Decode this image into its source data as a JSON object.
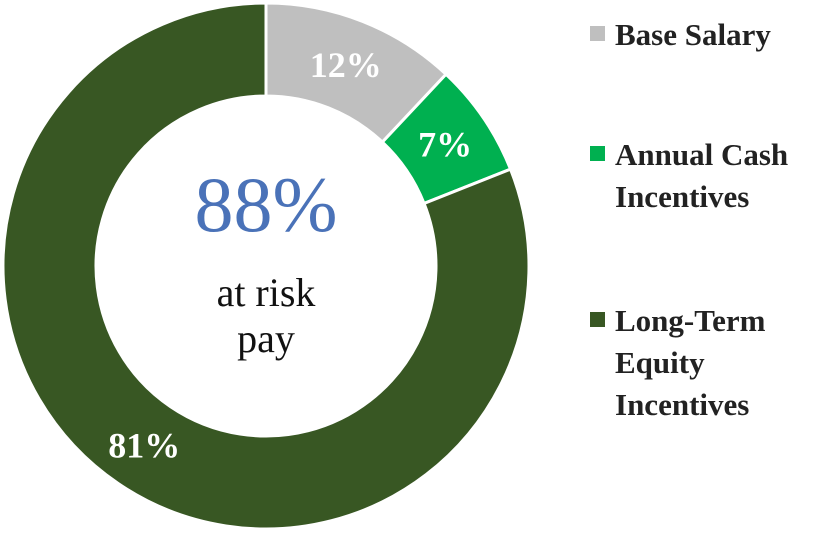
{
  "chart_data": {
    "type": "donut",
    "categories": [
      "Base Salary",
      "Annual Cash Incentives",
      "Long-Term Equity Incentives"
    ],
    "values": [
      12,
      7,
      81
    ],
    "value_labels": [
      "12%",
      "7%",
      "81%"
    ],
    "colors": [
      "#bfbfbf",
      "#00b050",
      "#385723"
    ],
    "center_value": "88%",
    "center_text": "at risk pay"
  }
}
